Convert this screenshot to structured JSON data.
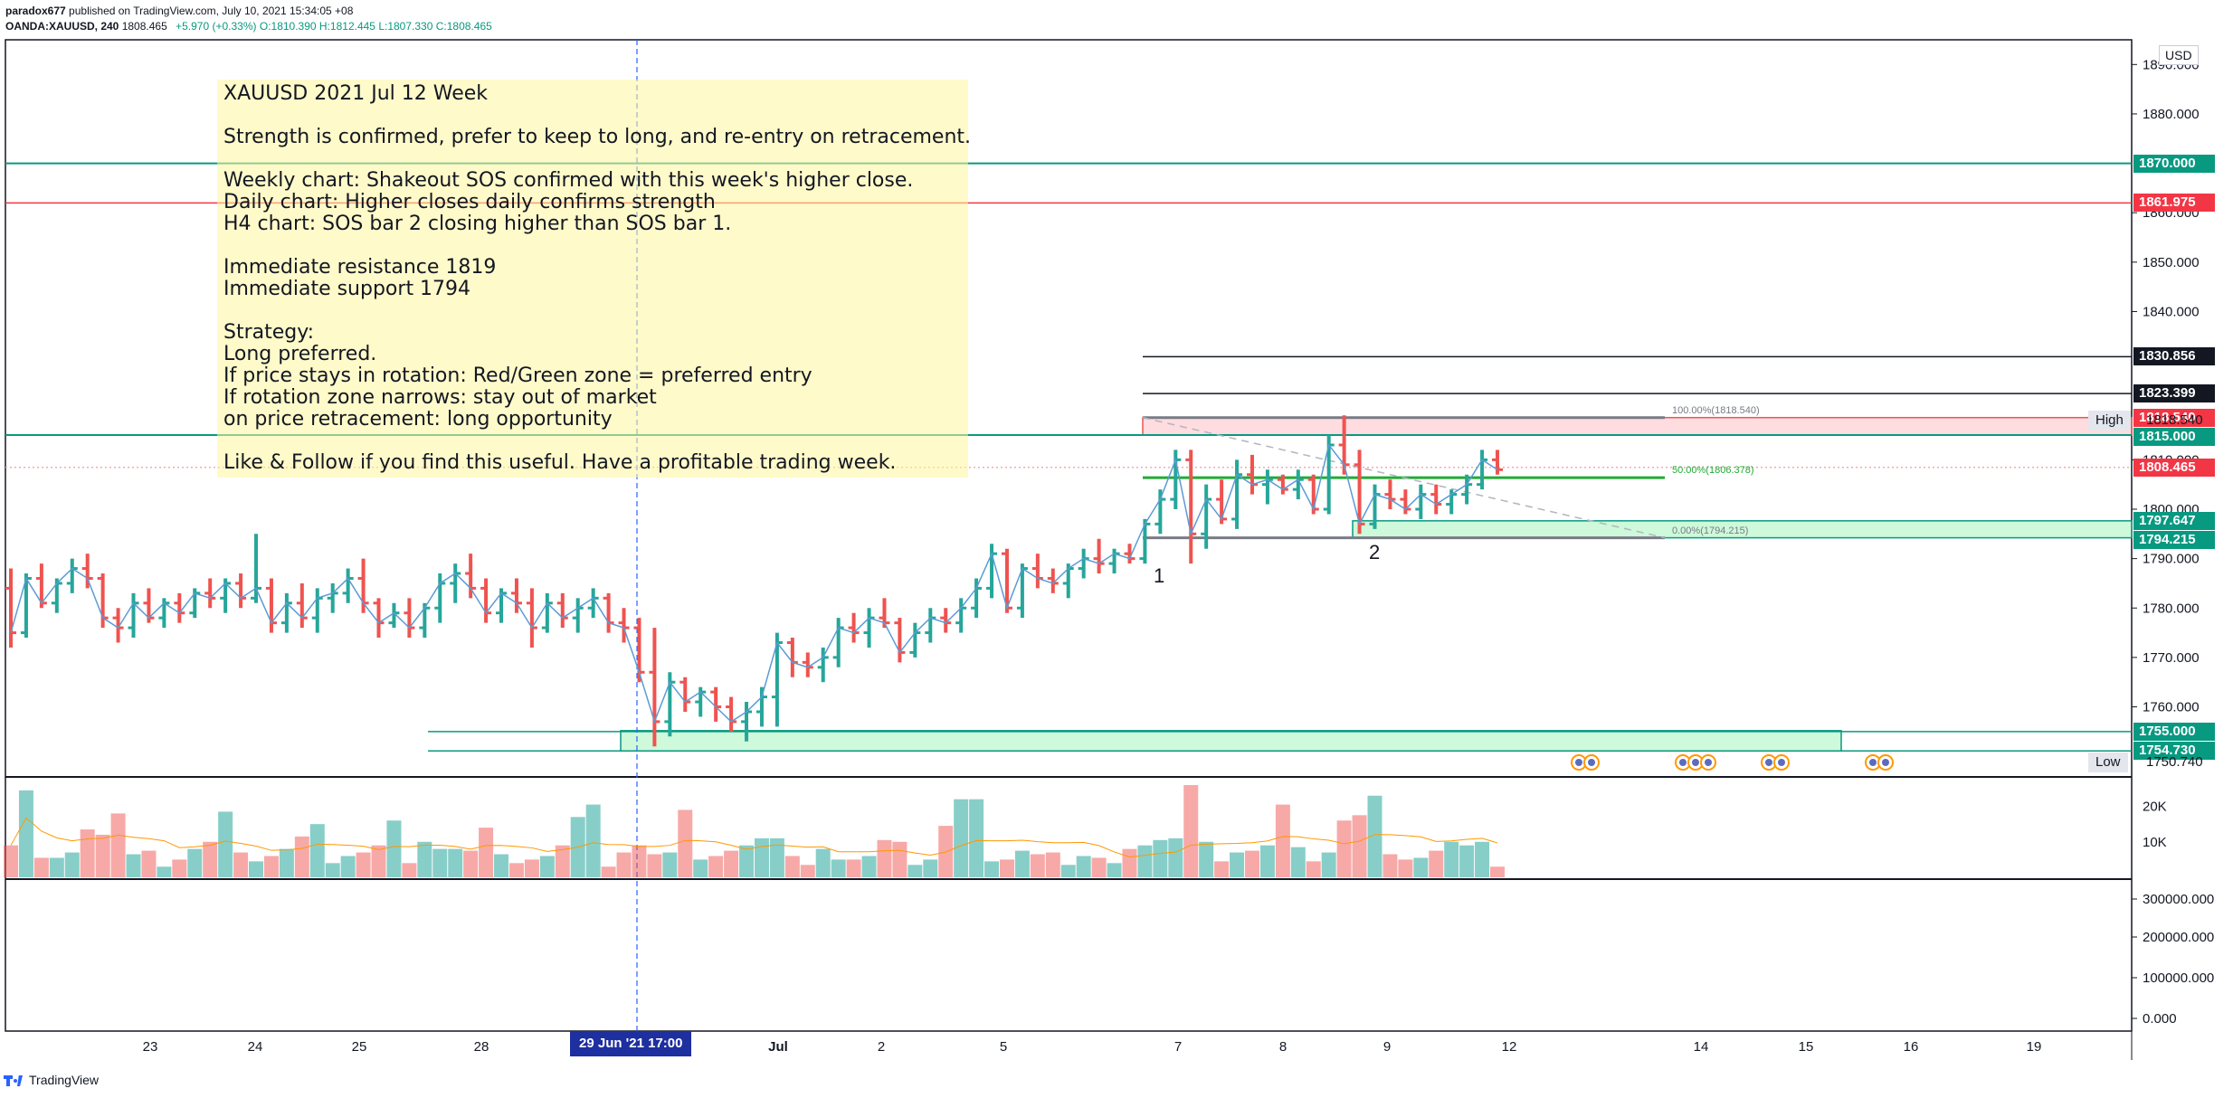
{
  "header": {
    "publisher_line_user": "paradox677",
    "publisher_line_rest": "published on TradingView.com, July 10, 2021 15:34:05 +08",
    "symbol": "OANDA:XAUUSD, 240",
    "last": "1808.465",
    "change": "+5.970 (+0.33%)",
    "ohlc_o": "O:1810.390",
    "ohlc_h": "H:1812.445",
    "ohlc_l": "L:1807.330",
    "ohlc_c": "C:1808.465"
  },
  "currency": "USD",
  "note": {
    "lines": [
      "XAUUSD 2021 Jul 12 Week",
      "Strength is confirmed, prefer to keep to long, and re-entry on retracement.",
      "Weekly chart: Shakeout SOS confirmed with this week's higher close.",
      "Daily chart: Higher closes daily confirms strength",
      "H4 chart: SOS bar 2 closing higher than SOS bar 1.",
      "Immediate resistance 1819",
      "Immediate support 1794",
      "Strategy:",
      "Long preferred.",
      "If price stays in rotation: Red/Green zone = preferred entry",
      "If rotation zone narrows: stay out of market",
      "on price retracement: long opportunity",
      "Like & Follow if you find this useful.  Have a profitable trading week."
    ]
  },
  "price_labels": [
    {
      "text": "1870.000",
      "value": 1870.0,
      "color": "#089981"
    },
    {
      "text": "1861.975",
      "value": 1861.975,
      "color": "#f23645"
    },
    {
      "text": "1830.856",
      "value": 1830.856,
      "color": "#131722"
    },
    {
      "text": "1823.399",
      "value": 1823.399,
      "color": "#131722"
    },
    {
      "text": "1818.540",
      "value": 1818.54,
      "color": "#f23645"
    },
    {
      "text": "1815.000",
      "value": 1815.0,
      "color": "#089981"
    },
    {
      "text": "1808.465",
      "value": 1808.465,
      "color": "#f23645"
    },
    {
      "text": "1797.647",
      "value": 1797.647,
      "color": "#089981"
    },
    {
      "text": "1794.215",
      "value": 1794.215,
      "color": "#089981"
    },
    {
      "text": "1755.000",
      "value": 1755.0,
      "color": "#089981"
    },
    {
      "text": "1754.730",
      "value": 1754.73,
      "color": "#089981"
    }
  ],
  "high_label": {
    "word": "High",
    "value": "1818.540"
  },
  "low_label": {
    "word": "Low",
    "value": "1750.740"
  },
  "fib_labels": {
    "f100": "100.00%(1818.540)",
    "f50": "50.00%(1806.378)",
    "f0": "0.00%(1794.215)"
  },
  "annotations": {
    "bar1": "1",
    "bar2": "2"
  },
  "crosshair_date": "29 Jun '21   17:00",
  "footer": {
    "brand": "TradingView"
  },
  "colors": {
    "up": "#26a69a",
    "down": "#ef5350",
    "line": "#5b9bd5",
    "zone_green": "#b9f6ca",
    "zone_red": "#ffcdd2"
  },
  "chart_data": {
    "type": "candlestick",
    "title": "OANDA:XAUUSD, 240",
    "ylabel": "USD",
    "ylim": [
      1746,
      1895
    ],
    "y_ticks": [
      1760,
      1770,
      1780,
      1790,
      1800,
      1810,
      1840,
      1850,
      1860,
      1880,
      1890
    ],
    "y_tick_labels": [
      "1760.000",
      "1770.000",
      "1780.000",
      "1790.000",
      "1800.000",
      "1810.000",
      "1840.000",
      "1850.000",
      "1860.000",
      "1880.000",
      "1890.000"
    ],
    "x_labels": [
      "23",
      "24",
      "25",
      "28",
      "Jul",
      "2",
      "5",
      "7",
      "8",
      "9",
      "12",
      "14",
      "15",
      "16",
      "19"
    ],
    "volume_ticks": [
      "20K",
      "10K"
    ],
    "volume_max": 26000,
    "volume_values": [
      9000,
      24500,
      5500,
      5500,
      7000,
      13500,
      12000,
      18000,
      6500,
      7500,
      3000,
      5000,
      8000,
      10000,
      18500,
      7000,
      4500,
      6000,
      8000,
      11500,
      15000,
      4000,
      6000,
      7000,
      9000,
      16000,
      4000,
      10000,
      8000,
      8000,
      7500,
      14000,
      6500,
      4000,
      5000,
      6000,
      9000,
      17000,
      20500,
      3000,
      7000,
      9000,
      6500,
      7000,
      19000,
      5000,
      6000,
      7500,
      9000,
      11000,
      11000,
      6000,
      3500,
      8000,
      5000,
      5000,
      6000,
      10500,
      10000,
      3500,
      5000,
      14500,
      22000,
      22000,
      4500,
      5000,
      7500,
      6500,
      7000,
      3500,
      6000,
      5500,
      4000,
      8000,
      9000,
      10500,
      11000,
      26000,
      10000,
      4500,
      7000,
      7500,
      9000,
      20500,
      8500,
      4500,
      7000,
      16000,
      17500,
      23000,
      6500,
      5000,
      5500,
      7500,
      10000,
      9000,
      10000,
      3000
    ],
    "secondary_axis_labels": [
      "300000.000",
      "200000.000",
      "100000.000",
      "0.000"
    ],
    "horizontal_lines": [
      1870.0,
      1861.975,
      1830.856,
      1823.399,
      1815.0,
      1755.0,
      1754.73
    ],
    "zones": [
      {
        "name": "red-zone",
        "from": 1815.0,
        "to": 1818.54
      },
      {
        "name": "green-zone-upper",
        "from": 1794.215,
        "to": 1797.647
      },
      {
        "name": "green-zone-lower",
        "from": 1754.73,
        "to": 1755.0
      }
    ],
    "candles": [
      [
        1784,
        1788,
        1772,
        1775
      ],
      [
        1775,
        1787,
        1774,
        1786
      ],
      [
        1786,
        1789,
        1780,
        1781
      ],
      [
        1781,
        1786,
        1779,
        1785
      ],
      [
        1785,
        1790,
        1783,
        1788
      ],
      [
        1788,
        1791,
        1784,
        1786
      ],
      [
        1786,
        1787,
        1776,
        1778
      ],
      [
        1778,
        1780,
        1773,
        1776
      ],
      [
        1776,
        1783,
        1774,
        1781
      ],
      [
        1781,
        1784,
        1777,
        1778
      ],
      [
        1778,
        1782,
        1776,
        1781
      ],
      [
        1781,
        1783,
        1777,
        1779
      ],
      [
        1779,
        1784,
        1778,
        1783
      ],
      [
        1783,
        1786,
        1780,
        1782
      ],
      [
        1782,
        1786,
        1779,
        1785
      ],
      [
        1785,
        1787,
        1780,
        1782
      ],
      [
        1782,
        1795,
        1781,
        1784
      ],
      [
        1784,
        1786,
        1775,
        1777
      ],
      [
        1777,
        1783,
        1775,
        1781
      ],
      [
        1781,
        1785,
        1776,
        1778
      ],
      [
        1778,
        1784,
        1775,
        1782
      ],
      [
        1782,
        1785,
        1779,
        1783
      ],
      [
        1783,
        1788,
        1781,
        1786
      ],
      [
        1786,
        1790,
        1779,
        1781
      ],
      [
        1781,
        1782,
        1774,
        1777
      ],
      [
        1777,
        1781,
        1776,
        1779
      ],
      [
        1779,
        1782,
        1774,
        1776
      ],
      [
        1776,
        1781,
        1774,
        1780
      ],
      [
        1780,
        1787,
        1777,
        1785
      ],
      [
        1785,
        1789,
        1781,
        1787
      ],
      [
        1787,
        1791,
        1782,
        1784
      ],
      [
        1784,
        1786,
        1777,
        1779
      ],
      [
        1779,
        1784,
        1777,
        1783
      ],
      [
        1783,
        1786,
        1779,
        1781
      ],
      [
        1781,
        1784,
        1772,
        1776
      ],
      [
        1776,
        1783,
        1775,
        1781
      ],
      [
        1781,
        1783,
        1776,
        1778
      ],
      [
        1778,
        1782,
        1775,
        1780
      ],
      [
        1780,
        1784,
        1778,
        1782
      ],
      [
        1782,
        1783,
        1775,
        1777
      ],
      [
        1777,
        1780,
        1773,
        1776
      ],
      [
        1776,
        1778,
        1765,
        1767
      ],
      [
        1767,
        1776,
        1752,
        1757
      ],
      [
        1757,
        1767,
        1754,
        1765
      ],
      [
        1765,
        1766,
        1759,
        1761
      ],
      [
        1761,
        1764,
        1758,
        1763
      ],
      [
        1763,
        1764,
        1757,
        1760
      ],
      [
        1760,
        1762,
        1755,
        1757
      ],
      [
        1757,
        1761,
        1753,
        1759
      ],
      [
        1759,
        1764,
        1756,
        1762
      ],
      [
        1762,
        1775,
        1756,
        1773
      ],
      [
        1773,
        1774,
        1766,
        1769
      ],
      [
        1769,
        1771,
        1766,
        1768
      ],
      [
        1768,
        1772,
        1765,
        1770
      ],
      [
        1770,
        1778,
        1768,
        1776
      ],
      [
        1776,
        1779,
        1773,
        1775
      ],
      [
        1775,
        1780,
        1772,
        1778
      ],
      [
        1778,
        1782,
        1776,
        1777
      ],
      [
        1777,
        1778,
        1769,
        1771
      ],
      [
        1771,
        1777,
        1770,
        1775
      ],
      [
        1775,
        1780,
        1773,
        1778
      ],
      [
        1778,
        1780,
        1775,
        1777
      ],
      [
        1777,
        1782,
        1775,
        1780
      ],
      [
        1780,
        1786,
        1778,
        1784
      ],
      [
        1784,
        1793,
        1782,
        1791
      ],
      [
        1791,
        1792,
        1779,
        1780
      ],
      [
        1780,
        1789,
        1778,
        1788
      ],
      [
        1788,
        1791,
        1784,
        1786
      ],
      [
        1786,
        1788,
        1783,
        1785
      ],
      [
        1785,
        1789,
        1782,
        1788
      ],
      [
        1788,
        1792,
        1786,
        1790
      ],
      [
        1790,
        1794,
        1787,
        1789
      ],
      [
        1789,
        1792,
        1787,
        1791
      ],
      [
        1791,
        1793,
        1789,
        1790
      ],
      [
        1790,
        1798,
        1789,
        1797
      ],
      [
        1797,
        1804,
        1795,
        1802
      ],
      [
        1802,
        1812,
        1800,
        1810
      ],
      [
        1810,
        1812,
        1789,
        1795
      ],
      [
        1795,
        1805,
        1792,
        1802
      ],
      [
        1802,
        1806,
        1797,
        1798
      ],
      [
        1798,
        1810,
        1796,
        1807
      ],
      [
        1807,
        1811,
        1803,
        1805
      ],
      [
        1805,
        1808,
        1801,
        1806
      ],
      [
        1806,
        1807,
        1803,
        1804
      ],
      [
        1804,
        1808,
        1802,
        1806
      ],
      [
        1806,
        1807,
        1799,
        1800
      ],
      [
        1800,
        1815,
        1799,
        1813
      ],
      [
        1813,
        1819,
        1807,
        1809
      ],
      [
        1809,
        1812,
        1795,
        1797
      ],
      [
        1797,
        1805,
        1796,
        1803
      ],
      [
        1803,
        1806,
        1800,
        1802
      ],
      [
        1802,
        1804,
        1799,
        1800
      ],
      [
        1800,
        1805,
        1798,
        1803
      ],
      [
        1803,
        1805,
        1799,
        1801
      ],
      [
        1801,
        1804,
        1799,
        1803
      ],
      [
        1803,
        1807,
        1801,
        1805
      ],
      [
        1805,
        1812,
        1804,
        1810
      ],
      [
        1810,
        1812,
        1807,
        1808
      ]
    ]
  }
}
